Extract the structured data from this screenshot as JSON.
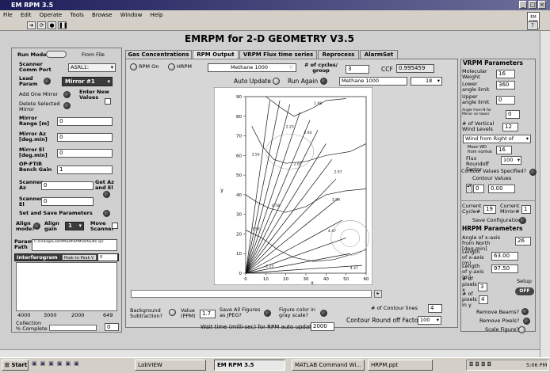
{
  "window": {
    "title": "EM RPM 3.5"
  },
  "menu": [
    "File",
    "Edit",
    "Operate",
    "Tools",
    "Browse",
    "Window",
    "Help"
  ],
  "app_badge": "EM RPM",
  "main_title": "EMRPM for 2-D GEOMETRY V3.5",
  "left": {
    "run_mode_label": "Run Mode",
    "from_file_label": "From File",
    "scanner_comm_port_label": "Scanner Comm Port",
    "comm_port_value": "ASRL1:",
    "lead_param_label": "Lead Param",
    "lead_param_value": "Mirror #1",
    "add_mirror_label": "Add One Mirror",
    "enter_new_values_label": "Enter New Values",
    "delete_mirror_label": "Delete Selected Mirror",
    "mirror_range_label": "Mirror Range [m]",
    "mirror_range_value": "0",
    "mirror_az_label": "Mirror Az [deg.min]",
    "mirror_az_value": "0",
    "mirror_el_label": "Mirror El [deg.min]",
    "mirror_el_value": "0",
    "op_ftir_label": "OP-FTIR Bench Gain",
    "op_ftir_value": "1",
    "scanner_az_label": "Scanner Az",
    "scanner_az_value": "0",
    "get_az_el_label": "Get Az and El",
    "scanner_el_label": "Scanner El",
    "scanner_el_value": "0",
    "set_save_label": "Set and Save Parameters",
    "align_mode_label": "Align mode?",
    "align_gain_label": "Align gain",
    "align_gain_value": "1",
    "move_scanner_label": "Move Scanner",
    "param_path_label": "Param Path",
    "param_path_value": "C:\\OrangeCo\\RPM\\EM\\RPM\\defaults.rpc",
    "interferogram_label": "Interferogram",
    "interferogram_mode": "Peak-to-Peak V",
    "interferogram_value": "0",
    "interferogram_ticks": [
      "4000",
      "3000",
      "2000",
      "649"
    ],
    "collection_label": "Collection % Complete",
    "collection_value": "0"
  },
  "tabs": [
    "Gas Concentrations",
    "RPM Output",
    "VRPM Flux time series",
    "Reprocess",
    "AlarmSet"
  ],
  "active_tab": 1,
  "center": {
    "rpm_on_label": "RPM On",
    "hrpm_label": "HRPM",
    "gas_select": "Methane 1000",
    "cycles_label": "# of cycles/ group",
    "cycles_value": "3",
    "ccf_label": "CCF",
    "ccf_value": "0.995459",
    "auto_update_label": "Auto Update",
    "run_again_label": "Run Again",
    "gas_select_2": "Methane 1000",
    "gas_index": "18",
    "bg_subtraction_label": "Background Subtraction?",
    "value_ppm_label": "Value (PPM)",
    "value_ppm": "1.7",
    "save_figures_label": "Save All Figures as JPEG?",
    "gray_scale_label": "Figure color in gray scale?",
    "contour_lines_label": "# of Contour lines",
    "contour_lines_value": "4",
    "contour_roundoff_label": "Contour Round off Factor",
    "contour_roundoff_value": "100",
    "wait_time_label": "Wait time (milli-sec) for RPM auto update",
    "wait_time_value": "2000"
  },
  "chart_data": {
    "type": "contour",
    "xlabel": "x",
    "ylabel": "y",
    "xlim": [
      0,
      60
    ],
    "ylim": [
      0,
      90
    ],
    "x_ticks": [
      0,
      10,
      20,
      30,
      40,
      50,
      60
    ],
    "y_ticks": [
      0,
      10,
      20,
      30,
      40,
      50,
      60,
      70,
      80,
      90
    ],
    "ray_origin": [
      0,
      0
    ],
    "ray_endpoints": [
      [
        12,
        88
      ],
      [
        17,
        88
      ],
      [
        22,
        86
      ],
      [
        27,
        82
      ],
      [
        32,
        78
      ],
      [
        36,
        73
      ],
      [
        40,
        66
      ],
      [
        43,
        58
      ],
      [
        45,
        48
      ],
      [
        46,
        38
      ],
      [
        48,
        27
      ],
      [
        50,
        18
      ],
      [
        52,
        10
      ],
      [
        58,
        4
      ]
    ],
    "contour_labels": [
      {
        "x": 36,
        "y": 86,
        "text": "1.98"
      },
      {
        "x": 22,
        "y": 74,
        "text": "2.23"
      },
      {
        "x": 31,
        "y": 71,
        "text": "2.93"
      },
      {
        "x": 5,
        "y": 60,
        "text": "3.50"
      },
      {
        "x": 26,
        "y": 55,
        "text": "2.61"
      },
      {
        "x": 46,
        "y": 51,
        "text": "2.97"
      },
      {
        "x": 15,
        "y": 34,
        "text": "4.58"
      },
      {
        "x": 45,
        "y": 37,
        "text": "2.98"
      },
      {
        "x": 43,
        "y": 21,
        "text": "4.47"
      },
      {
        "x": 5,
        "y": 22,
        "text": "3.50"
      },
      {
        "x": 12,
        "y": 3,
        "text": "2.23"
      },
      {
        "x": 54,
        "y": 2,
        "text": "4.47"
      }
    ]
  },
  "vrpm": {
    "header": "VRPM Parameters",
    "molecular_weight_label": "Molecular Weight",
    "molecular_weight_value": "16",
    "lower_angle_label": "Lower angle limit",
    "lower_angle_value": "360",
    "upper_angle_label": "Upper angle limit",
    "upper_angle_value": "0",
    "angle_from_n_label": "Angle from N for Mirror on tower",
    "angle_from_n_value": "0",
    "vertical_wind_label": "# of Vertical Wind Levels",
    "vertical_wind_value": "12",
    "wind_select": "Wind from Right of",
    "mean_wd_label": "Mean WD from normal",
    "mean_wd_value": "16",
    "flux_roundoff_label": "Flux Roundoff Factor",
    "flux_roundoff_value": "100",
    "contour_specified_label": "Contour Values Specified?",
    "contour_values_label": "Contour Values",
    "contour_index": "0",
    "contour_value": "0.00",
    "current_cycle_label": "Current Cycle#",
    "current_cycle_value": "19",
    "current_mirror_label": "Current Mirror#",
    "current_mirror_value": "1",
    "save_config_label": "Save Configuration"
  },
  "hrpm": {
    "header": "HRPM Parameters",
    "angle_label": "Angle of x-axis from North [deg.min]",
    "angle_value": "26",
    "length_x_label": "Length of x-axis (m)",
    "length_x_value": "63.00",
    "length_y_label": "Length of y-axis (m)",
    "length_y_value": "97.50",
    "pixels_x_label": "# of pixels in x",
    "pixels_x_value": "3",
    "setup_label": "Setup",
    "setup_toggle": "OFF",
    "pixels_y_label": "# of pixels in y",
    "pixels_y_value": "4",
    "remove_beams_label": "Remove Beams?",
    "remove_pixels_label": "Remove Pixels?",
    "scale_figure_label": "Scale Figure?"
  },
  "taskbar": {
    "start_label": "Start",
    "items": [
      "LabVIEW",
      "EM RPM 3.5",
      "MATLAB Command Wi...",
      "HRPM.ppt"
    ],
    "active_index": 1,
    "clock": "5:06 PM"
  }
}
